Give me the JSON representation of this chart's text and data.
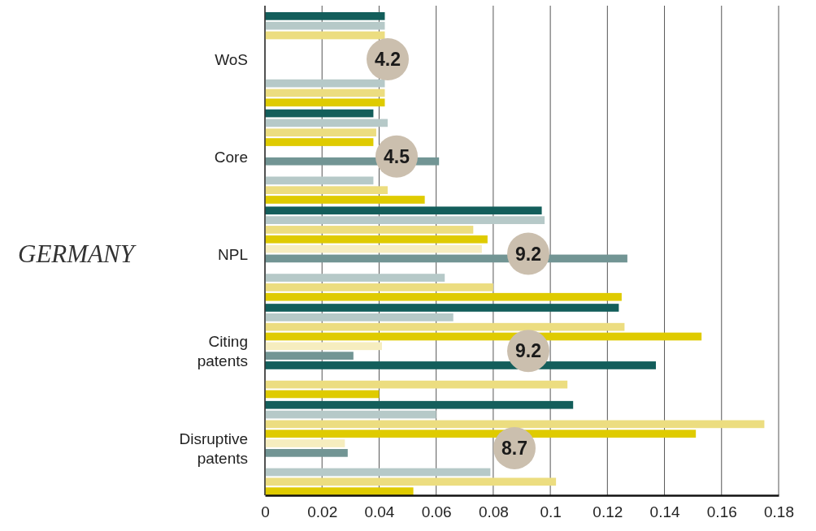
{
  "chart_data": {
    "type": "bar",
    "orientation": "horizontal",
    "ylabel": "GERMANY",
    "categories": [
      "WoS",
      "Core",
      "NPL",
      "Citing patents",
      "Disruptive patents"
    ],
    "series": [
      {
        "color": "#135e5b",
        "values": [
          0.042,
          0.038,
          0.097,
          0.124,
          0.108
        ]
      },
      {
        "color": "#b6c9c8",
        "values": [
          0.042,
          0.043,
          0.098,
          0.066,
          0.06
        ]
      },
      {
        "color": "#ecdd80",
        "values": [
          0.042,
          0.039,
          0.073,
          0.126,
          0.175
        ]
      },
      {
        "color": "#dfcb00",
        "values": [
          null,
          0.038,
          0.078,
          0.153,
          0.151
        ]
      },
      {
        "color": "#f6edbf",
        "values": [
          null,
          null,
          0.076,
          0.041,
          0.028
        ]
      },
      {
        "color": "#729594",
        "values": [
          null,
          0.061,
          0.127,
          0.031,
          0.029
        ]
      },
      {
        "color": "#135e5b",
        "values": [
          null,
          null,
          null,
          0.137,
          null
        ]
      },
      {
        "color": "#b6c9c8",
        "values": [
          0.042,
          0.038,
          0.063,
          null,
          0.079
        ]
      },
      {
        "color": "#ecdd80",
        "values": [
          0.042,
          0.043,
          0.08,
          0.106,
          0.102
        ]
      },
      {
        "color": "#dfcb00",
        "values": [
          0.042,
          0.056,
          0.125,
          0.04,
          0.052
        ]
      }
    ],
    "xlim": [
      0,
      0.18
    ],
    "xticks": [
      0,
      0.02,
      0.04,
      0.06,
      0.08,
      0.1,
      0.12,
      0.14,
      0.16,
      0.18
    ],
    "grid": "x",
    "annotations": [
      "4.2",
      "4.5",
      "9.2",
      "9.2",
      "8.7"
    ]
  }
}
